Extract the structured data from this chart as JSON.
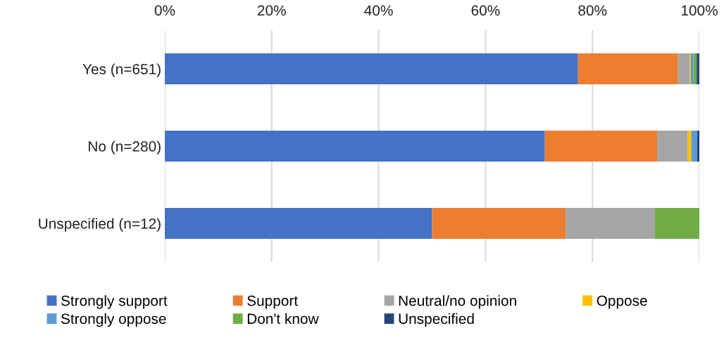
{
  "chart_data": {
    "type": "bar",
    "orientation": "horizontal",
    "stacked": true,
    "categories": [
      "Yes (n=651)",
      "No (n=280)",
      "Unspecified (n=12)"
    ],
    "series": [
      {
        "name": "Strongly support",
        "color": "#4472c4",
        "values": [
          77.3,
          71.1,
          50
        ]
      },
      {
        "name": "Support",
        "color": "#ed7d31",
        "values": [
          18.7,
          21.0,
          25
        ]
      },
      {
        "name": "Neutral/no opinion",
        "color": "#a5a5a5",
        "values": [
          2.2,
          5.7,
          16.7
        ]
      },
      {
        "name": "Oppose",
        "color": "#ffc000",
        "values": [
          0.2,
          0.7,
          0
        ]
      },
      {
        "name": "Strongly oppose",
        "color": "#5b9bd5",
        "values": [
          0.5,
          1.1,
          0
        ]
      },
      {
        "name": "Don't know",
        "color": "#70ad47",
        "values": [
          0.6,
          0,
          8.3
        ]
      },
      {
        "name": "Unspecified",
        "color": "#264478",
        "values": [
          0.5,
          0.4,
          0
        ]
      }
    ],
    "xlim": [
      0,
      100
    ],
    "xticks": [
      {
        "value": 0,
        "label": "0%"
      },
      {
        "value": 20,
        "label": "20%"
      },
      {
        "value": 40,
        "label": "40%"
      },
      {
        "value": 60,
        "label": "60%"
      },
      {
        "value": 80,
        "label": "80%"
      },
      {
        "value": 100,
        "label": "100%"
      }
    ],
    "grid": "x",
    "legend": "bottom"
  }
}
